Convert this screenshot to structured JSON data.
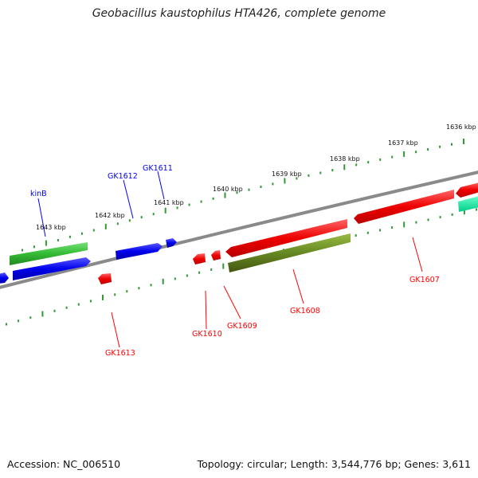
{
  "title": "Geobacillus kaustophilus HTA426, complete genome",
  "footer": {
    "accession": "Accession: NC_006510",
    "stats": "Topology: circular; Length: 3,544,776 bp; Genes: 3,611"
  },
  "colors": {
    "ring": "#808080",
    "forward_gene": "#0000ff",
    "forward_gene_alt": "#33cc33",
    "reverse_gene": "#ff0000",
    "reverse_gene_alt": "#669900",
    "partial_gene": "#00ee99",
    "ticks": "#339933"
  },
  "scale_labels": [
    {
      "label": "1636 kbp",
      "kbp": 1636
    },
    {
      "label": "1637 kbp",
      "kbp": 1637
    },
    {
      "label": "1638 kbp",
      "kbp": 1638
    },
    {
      "label": "1639 kbp",
      "kbp": 1639
    },
    {
      "label": "1640 kbp",
      "kbp": 1640
    },
    {
      "label": "1641 kbp",
      "kbp": 1641
    },
    {
      "label": "1642 kbp",
      "kbp": 1642
    },
    {
      "label": "1643 kbp",
      "kbp": 1643
    }
  ],
  "forward_genes": [
    {
      "name": "kinB",
      "color": "#33cc33"
    },
    {
      "name": "GK1612",
      "color": "#0000ff"
    },
    {
      "name": "GK1611",
      "color": "#0000ff"
    }
  ],
  "reverse_genes": [
    {
      "name": "GK1613",
      "color": "#ff0000"
    },
    {
      "name": "GK1610",
      "color": "#ff0000"
    },
    {
      "name": "GK1609",
      "color": "#ff0000"
    },
    {
      "name": "GK1608",
      "color": "#669900"
    },
    {
      "name": "GK1607",
      "color": "#ff0000"
    }
  ]
}
